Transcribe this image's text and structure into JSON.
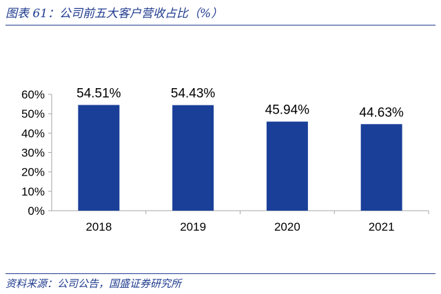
{
  "figure": {
    "title": "图表 61：公司前五大客户营收占比（%）",
    "source": "资料来源：公司公告，国盛证券研究所"
  },
  "colors": {
    "bar": "#1a3f99",
    "caption": "#1f3b8f",
    "axis": "#a6a6a6"
  },
  "chart_data": {
    "type": "bar",
    "categories": [
      "2018",
      "2019",
      "2020",
      "2021"
    ],
    "values": [
      54.51,
      54.43,
      45.94,
      44.63
    ],
    "value_labels": [
      "54.51%",
      "54.43%",
      "45.94%",
      "44.63%"
    ],
    "unit": "%",
    "ylim": [
      0,
      60
    ],
    "yticks": [
      0,
      10,
      20,
      30,
      40,
      50,
      60
    ],
    "ytick_labels": [
      "0%",
      "10%",
      "20%",
      "30%",
      "40%",
      "50%",
      "60%"
    ],
    "grid": false,
    "legend": "none"
  }
}
